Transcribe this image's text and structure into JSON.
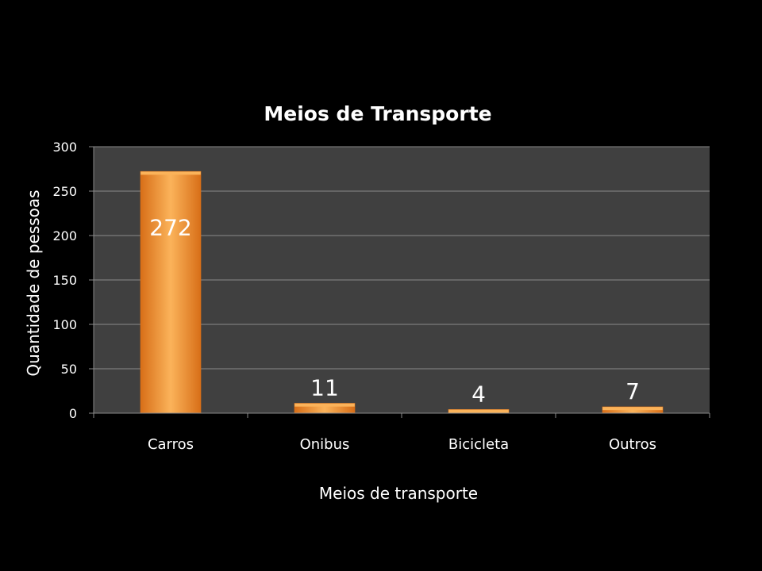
{
  "chart_data": {
    "type": "bar",
    "title": "Meios de Transporte",
    "xlabel": "Meios de transporte",
    "ylabel": "Quantidade de pessoas",
    "categories": [
      "Carros",
      "Onibus",
      "Bicicleta",
      "Outros"
    ],
    "values": [
      272,
      11,
      4,
      7
    ],
    "data_labels": [
      "272",
      "11",
      "4",
      "7"
    ],
    "ylim": [
      0,
      300
    ],
    "yticks": [
      0,
      50,
      100,
      150,
      200,
      250,
      300
    ],
    "grid": true,
    "legend": "none",
    "colors": {
      "bar": "#f0902a",
      "bar_light": "#fbb35a",
      "bar_dark": "#d86f18",
      "plot_bg": "#404040",
      "gridline": "#8a8a8a",
      "background": "#000000",
      "text": "#ffffff"
    }
  }
}
